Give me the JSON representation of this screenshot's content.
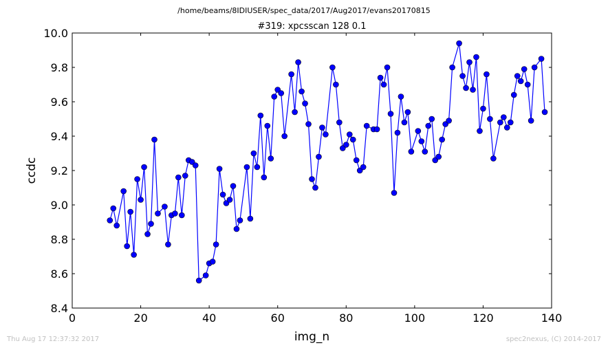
{
  "header": {
    "suptitle": "/home/beams/8IDIUSER/spec_data/2017/Aug2017/evans20170815"
  },
  "footer": {
    "timestamp": "Thu Aug 17 12:37:32 2017",
    "credit": "spec2nexus, (C) 2014-2017"
  },
  "chart_data": {
    "type": "line",
    "title": "#319: xpcsscan 128 0.1",
    "xlabel": "img_n",
    "ylabel": "ccdc",
    "xlim": [
      0,
      140
    ],
    "ylim": [
      8.4,
      10.0
    ],
    "xticks": [
      0,
      20,
      40,
      60,
      80,
      100,
      120,
      140
    ],
    "yticks": [
      8.4,
      8.6,
      8.8,
      9.0,
      9.2,
      9.4,
      9.6,
      9.8,
      10.0
    ],
    "grid": false,
    "legend": "none",
    "marker": "circle",
    "color": "#0000ff",
    "series": [
      {
        "x": [
          11,
          12,
          13,
          15,
          16,
          17,
          18,
          19,
          20,
          21,
          22,
          23,
          24,
          25,
          27,
          28,
          29,
          30,
          31,
          32,
          33,
          34,
          35,
          36,
          37,
          39,
          40,
          41,
          42,
          43,
          44,
          45,
          46,
          47,
          48,
          49,
          51,
          52,
          53,
          54,
          55,
          56,
          57,
          58,
          59,
          60,
          61,
          62,
          64,
          65,
          66,
          67,
          68,
          69,
          70,
          71,
          72,
          73,
          74,
          76,
          77,
          78,
          79,
          80,
          81,
          82,
          83,
          84,
          85,
          86,
          88,
          89,
          90,
          91,
          92,
          93,
          94,
          95,
          96,
          97,
          98,
          99,
          101,
          102,
          103,
          104,
          105,
          106,
          107,
          108,
          109,
          110,
          111,
          113,
          114,
          115,
          116,
          117,
          118,
          119,
          120,
          121,
          122,
          123,
          125,
          126,
          127,
          128,
          129,
          130,
          131,
          132,
          133,
          134,
          135,
          137,
          138
        ],
        "y": [
          8.91,
          8.98,
          8.88,
          9.08,
          8.76,
          8.96,
          8.71,
          9.15,
          9.03,
          9.22,
          8.83,
          8.89,
          9.38,
          8.95,
          8.99,
          8.77,
          8.94,
          8.95,
          9.16,
          8.94,
          9.17,
          9.26,
          9.25,
          9.23,
          8.56,
          8.59,
          8.66,
          8.67,
          8.77,
          9.21,
          9.06,
          9.01,
          9.03,
          9.11,
          8.86,
          8.91,
          9.22,
          8.92,
          9.3,
          9.22,
          9.52,
          9.16,
          9.46,
          9.27,
          9.63,
          9.67,
          9.65,
          9.4,
          9.76,
          9.54,
          9.83,
          9.66,
          9.59,
          9.47,
          9.15,
          9.1,
          9.28,
          9.45,
          9.41,
          9.8,
          9.7,
          9.48,
          9.33,
          9.35,
          9.41,
          9.38,
          9.26,
          9.2,
          9.22,
          9.46,
          9.44,
          9.44,
          9.74,
          9.7,
          9.8,
          9.53,
          9.07,
          9.42,
          9.63,
          9.48,
          9.54,
          9.31,
          9.43,
          9.37,
          9.31,
          9.46,
          9.5,
          9.26,
          9.28,
          9.38,
          9.47,
          9.49,
          9.8,
          9.94,
          9.75,
          9.68,
          9.83,
          9.67,
          9.86,
          9.43,
          9.56,
          9.76,
          9.5,
          9.27,
          9.48,
          9.51,
          9.45,
          9.48,
          9.64,
          9.75,
          9.72,
          9.79,
          9.7,
          9.49,
          9.8,
          9.85,
          9.54
        ]
      }
    ]
  }
}
